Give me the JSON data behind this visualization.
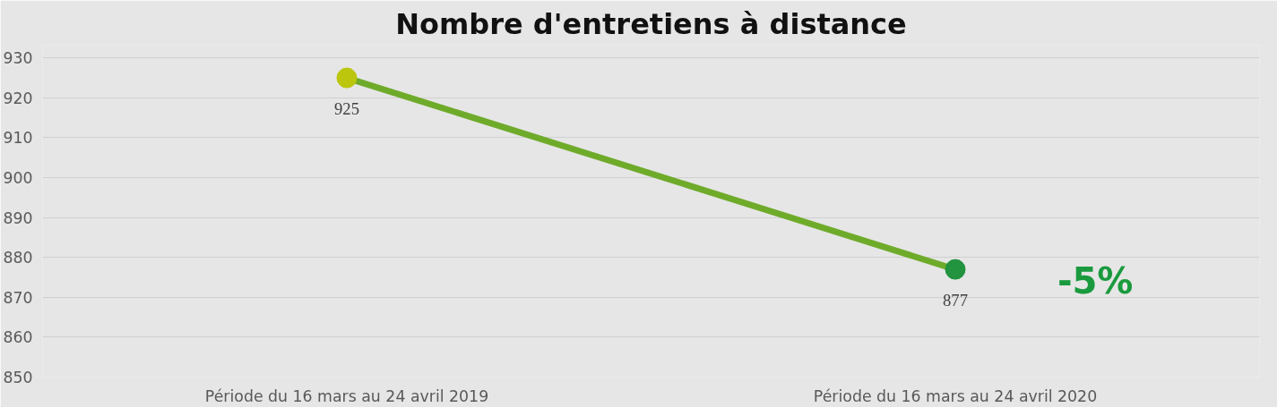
{
  "chart_data": {
    "type": "line",
    "title": "Nombre d'entretiens à distance",
    "categories": [
      "Période du 16 mars au 24 avril 2019",
      "Période du 16 mars au 24 avril 2020"
    ],
    "series": [
      {
        "color": "#6fab2a",
        "colors": [
          "#bcc60c",
          "#22933f"
        ],
        "values": [
          925,
          877
        ]
      }
    ],
    "ylim": [
      850,
      930
    ],
    "yticks": [
      850,
      860,
      870,
      880,
      890,
      900,
      910,
      920,
      930
    ],
    "grid": "y",
    "marker": "circle",
    "line_style": "solid",
    "data_labels": true,
    "annotations": [
      "-5%"
    ]
  }
}
